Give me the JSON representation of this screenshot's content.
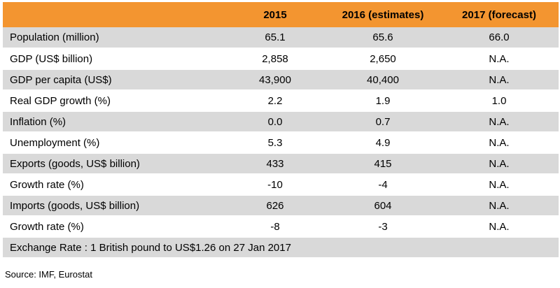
{
  "colors": {
    "header_bg": "#F39530",
    "row_shade": "#D9D9D9",
    "row_plain": "#FFFFFF"
  },
  "chart_data": {
    "type": "table",
    "columns": [
      "",
      "2015",
      "2016 (estimates)",
      "2017 (forecast)"
    ],
    "rows": [
      {
        "label": "Population  (million)",
        "values": [
          "65.1",
          "65.6",
          "66.0"
        ]
      },
      {
        "label": "GDP  (US$ billion)",
        "values": [
          "2,858",
          "2,650",
          "N.A."
        ]
      },
      {
        "label": "GDP per capita  (US$)",
        "values": [
          "43,900",
          "40,400",
          "N.A."
        ]
      },
      {
        "label": "Real GDP growth  (%)",
        "values": [
          "2.2",
          "1.9",
          "1.0"
        ]
      },
      {
        "label": "Inflation  (%)",
        "values": [
          "0.0",
          "0.7",
          "N.A."
        ]
      },
      {
        "label": "Unemployment  (%)",
        "values": [
          "5.3",
          "4.9",
          "N.A."
        ]
      },
      {
        "label": "Exports  (goods,  US$ billion)",
        "values": [
          "433",
          "415",
          "N.A."
        ]
      },
      {
        "label": "Growth rate  (%)",
        "values": [
          "-10",
          "-4",
          "N.A."
        ]
      },
      {
        "label": "Imports  (goods,  US$ billion)",
        "values": [
          "626",
          "604",
          "N.A."
        ]
      },
      {
        "label": "Growth rate  (%)",
        "values": [
          "-8",
          "-3",
          "N.A."
        ]
      }
    ],
    "note": "Exchange Rate : 1 British pound to US$1.26 on 27 Jan 2017",
    "source": "Source: IMF, Eurostat"
  }
}
